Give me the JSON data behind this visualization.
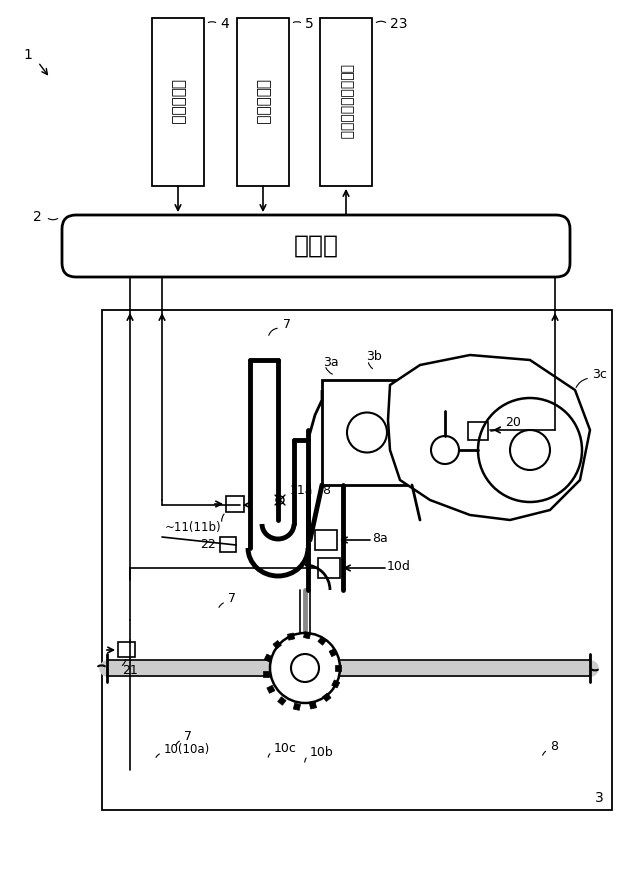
{
  "bg_color": "#ffffff",
  "fig_width": 6.4,
  "fig_height": 8.69,
  "box1_text": "燃料噴射弁",
  "box2_text": "点火プラグ",
  "box3_text": "アクセル開度センサ",
  "label_ecu": "ＥＣＵ"
}
